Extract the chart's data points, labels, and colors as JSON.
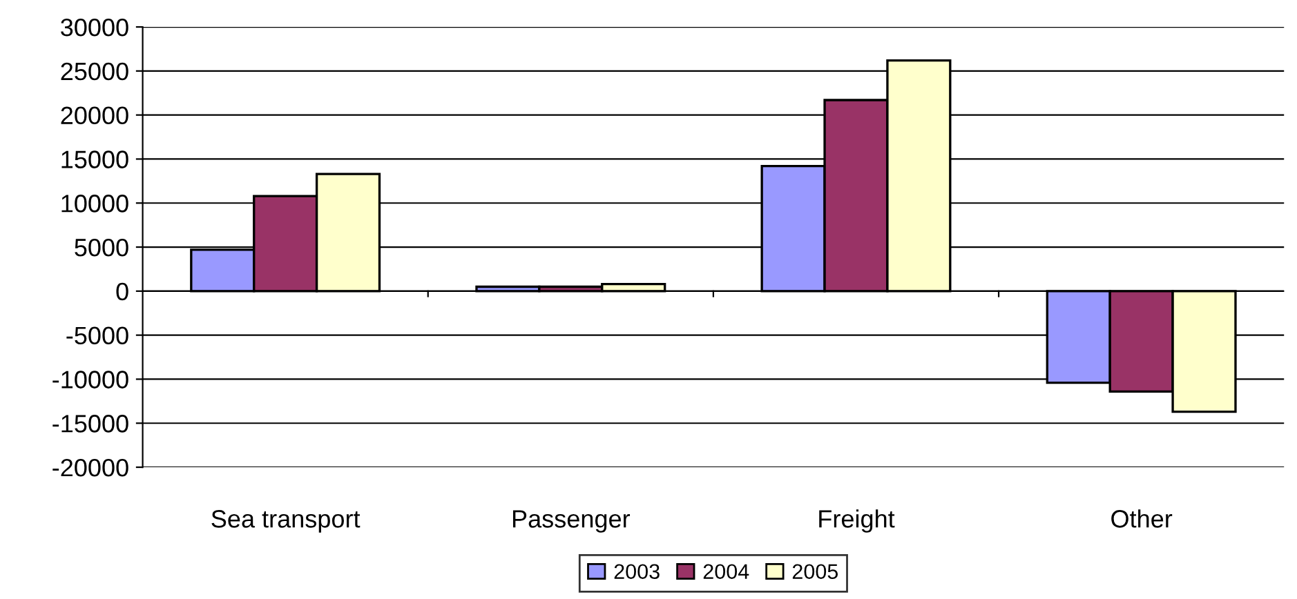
{
  "chart_data": {
    "type": "bar",
    "categories": [
      "Sea transport",
      "Passenger",
      "Freight",
      "Other"
    ],
    "series": [
      {
        "name": "2003",
        "color": "#9999ff",
        "values": [
          4700,
          500,
          14200,
          -10400
        ]
      },
      {
        "name": "2004",
        "color": "#993366",
        "values": [
          10800,
          500,
          21700,
          -11400
        ]
      },
      {
        "name": "2005",
        "color": "#ffffcc",
        "values": [
          13300,
          800,
          26200,
          -13700
        ]
      }
    ],
    "ylim": [
      -20000,
      30000
    ],
    "yticks": [
      -20000,
      -15000,
      -10000,
      -5000,
      0,
      5000,
      10000,
      15000,
      20000,
      25000,
      30000
    ],
    "grid": "y",
    "legend": "bottom"
  }
}
